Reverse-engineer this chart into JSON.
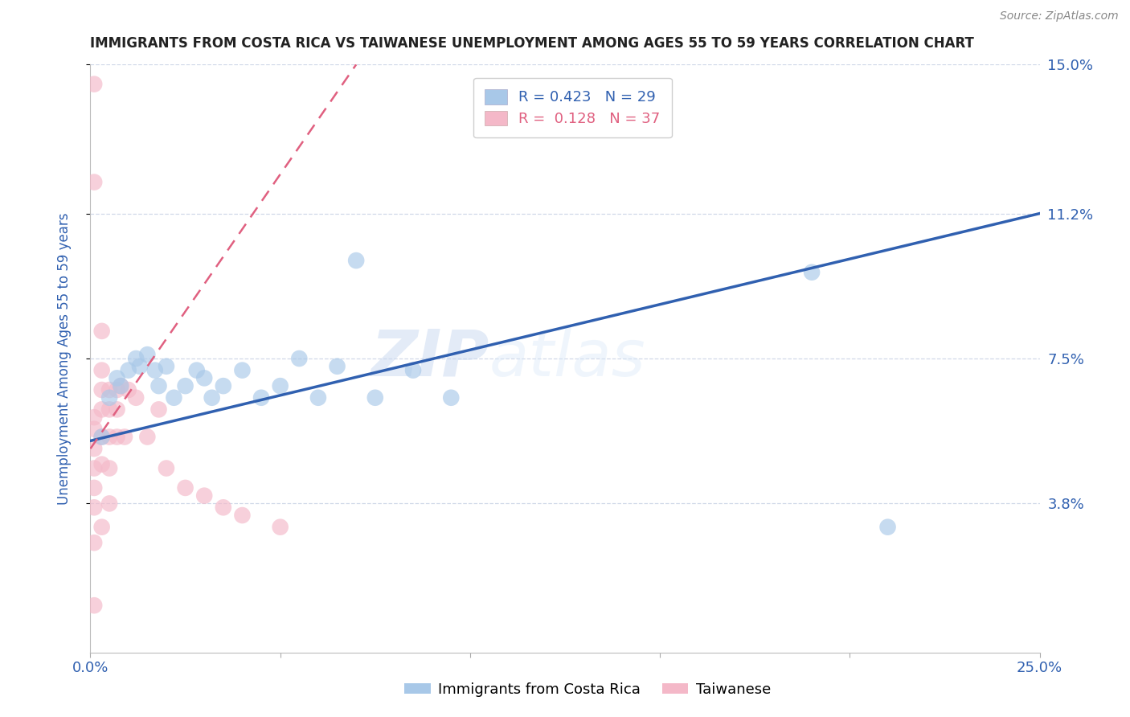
{
  "title": "IMMIGRANTS FROM COSTA RICA VS TAIWANESE UNEMPLOYMENT AMONG AGES 55 TO 59 YEARS CORRELATION CHART",
  "source": "Source: ZipAtlas.com",
  "ylabel": "Unemployment Among Ages 55 to 59 years",
  "xlim": [
    0,
    0.25
  ],
  "ylim": [
    0,
    0.15
  ],
  "ytick_labels_right": [
    "15.0%",
    "11.2%",
    "7.5%",
    "3.8%"
  ],
  "ytick_values_right": [
    0.15,
    0.112,
    0.075,
    0.038
  ],
  "blue_R": "0.423",
  "blue_N": "29",
  "pink_R": "0.128",
  "pink_N": "37",
  "blue_color": "#a8c8e8",
  "pink_color": "#f4b8c8",
  "blue_line_color": "#3060b0",
  "pink_line_color": "#e06080",
  "blue_scatter_x": [
    0.003,
    0.005,
    0.007,
    0.008,
    0.01,
    0.012,
    0.013,
    0.015,
    0.017,
    0.018,
    0.02,
    0.022,
    0.025,
    0.028,
    0.03,
    0.032,
    0.035,
    0.04,
    0.045,
    0.05,
    0.055,
    0.06,
    0.065,
    0.07,
    0.075,
    0.085,
    0.095,
    0.19,
    0.21
  ],
  "blue_scatter_y": [
    0.055,
    0.065,
    0.07,
    0.068,
    0.072,
    0.075,
    0.073,
    0.076,
    0.072,
    0.068,
    0.073,
    0.065,
    0.068,
    0.072,
    0.07,
    0.065,
    0.068,
    0.072,
    0.065,
    0.068,
    0.075,
    0.065,
    0.073,
    0.1,
    0.065,
    0.072,
    0.065,
    0.097,
    0.032
  ],
  "pink_scatter_x": [
    0.001,
    0.001,
    0.001,
    0.001,
    0.001,
    0.001,
    0.001,
    0.001,
    0.001,
    0.001,
    0.003,
    0.003,
    0.003,
    0.003,
    0.003,
    0.003,
    0.003,
    0.005,
    0.005,
    0.005,
    0.005,
    0.005,
    0.007,
    0.007,
    0.007,
    0.008,
    0.009,
    0.01,
    0.012,
    0.015,
    0.018,
    0.02,
    0.025,
    0.03,
    0.035,
    0.04,
    0.05
  ],
  "pink_scatter_y": [
    0.145,
    0.12,
    0.06,
    0.057,
    0.052,
    0.047,
    0.042,
    0.037,
    0.028,
    0.012,
    0.082,
    0.072,
    0.067,
    0.062,
    0.055,
    0.048,
    0.032,
    0.067,
    0.062,
    0.055,
    0.047,
    0.038,
    0.067,
    0.062,
    0.055,
    0.068,
    0.055,
    0.067,
    0.065,
    0.055,
    0.062,
    0.047,
    0.042,
    0.04,
    0.037,
    0.035,
    0.032
  ],
  "blue_regline_x": [
    0.0,
    0.25
  ],
  "blue_regline_y": [
    0.054,
    0.112
  ],
  "pink_regline_x": [
    0.0,
    0.07
  ],
  "pink_regline_y": [
    0.052,
    0.15
  ],
  "watermark_zip": "ZIP",
  "watermark_atlas": "atlas",
  "grid_color": "#d0d8e8",
  "title_color": "#222222",
  "right_label_color": "#3060b0",
  "ylabel_color": "#3060b0",
  "xtick_color": "#3060b0",
  "background_color": "#ffffff"
}
